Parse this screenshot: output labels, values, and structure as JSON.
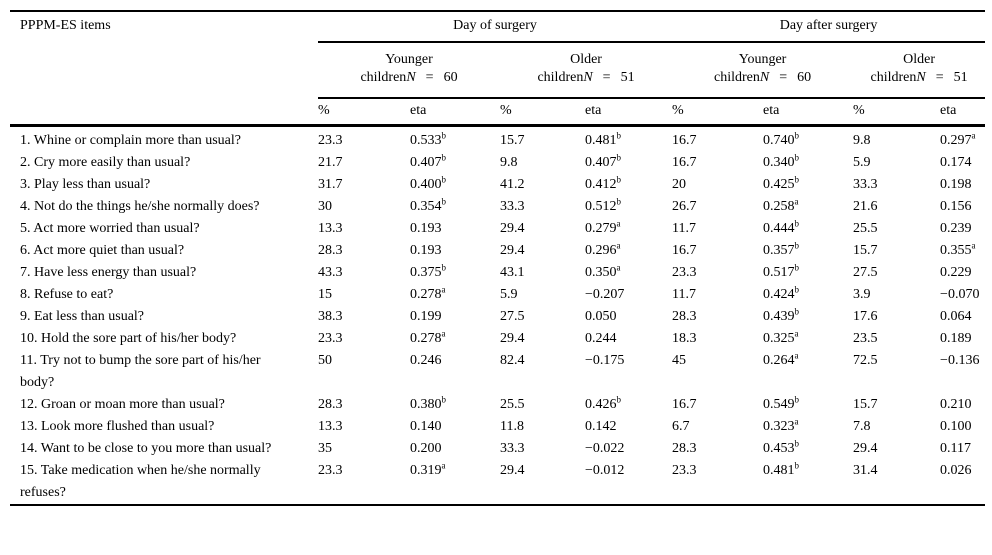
{
  "page": {
    "background": "#ffffff",
    "text_color": "#000000",
    "rule_color": "#000000"
  },
  "table": {
    "items_header": "PPPM-ES items",
    "group_headers": [
      "Day of surgery",
      "Day after surgery"
    ],
    "subheaders": [
      {
        "age_group": "Younger",
        "children_label": "children",
        "n_symbol": "N",
        "equals_sign": "=",
        "n_value": "60"
      },
      {
        "age_group": "Older",
        "children_label": "children",
        "n_symbol": "N",
        "equals_sign": "=",
        "n_value": "51"
      },
      {
        "age_group": "Younger",
        "children_label": "children",
        "n_symbol": "N",
        "equals_sign": "=",
        "n_value": "60"
      },
      {
        "age_group": "Older",
        "children_label": "children",
        "n_symbol": "N",
        "equals_sign": "=",
        "n_value": "51"
      }
    ],
    "measure_headers": [
      "%",
      "eta",
      "%",
      "eta",
      "%",
      "eta",
      "%",
      "eta"
    ],
    "rows": [
      {
        "item": "1. Whine or complain more than usual?",
        "values": [
          {
            "v": "23.3"
          },
          {
            "v": "0.533",
            "sup": "b"
          },
          {
            "v": "15.7"
          },
          {
            "v": "0.481",
            "sup": "b"
          },
          {
            "v": "16.7"
          },
          {
            "v": "0.740",
            "sup": "b"
          },
          {
            "v": "9.8"
          },
          {
            "v": "0.297",
            "sup": "a"
          }
        ]
      },
      {
        "item": "2. Cry more easily than usual?",
        "values": [
          {
            "v": "21.7"
          },
          {
            "v": "0.407",
            "sup": "b"
          },
          {
            "v": "9.8"
          },
          {
            "v": "0.407",
            "sup": "b"
          },
          {
            "v": "16.7"
          },
          {
            "v": "0.340",
            "sup": "b"
          },
          {
            "v": "5.9"
          },
          {
            "v": "0.174"
          }
        ]
      },
      {
        "item": "3. Play less than usual?",
        "values": [
          {
            "v": "31.7"
          },
          {
            "v": "0.400",
            "sup": "b"
          },
          {
            "v": "41.2"
          },
          {
            "v": "0.412",
            "sup": "b"
          },
          {
            "v": "20"
          },
          {
            "v": "0.425",
            "sup": "b"
          },
          {
            "v": "33.3"
          },
          {
            "v": "0.198"
          }
        ]
      },
      {
        "item": "4. Not do the things he/she normally does?",
        "values": [
          {
            "v": "30"
          },
          {
            "v": "0.354",
            "sup": "b"
          },
          {
            "v": "33.3"
          },
          {
            "v": "0.512",
            "sup": "b"
          },
          {
            "v": "26.7"
          },
          {
            "v": "0.258",
            "sup": "a"
          },
          {
            "v": "21.6"
          },
          {
            "v": "0.156"
          }
        ]
      },
      {
        "item": "5. Act more worried than usual?",
        "values": [
          {
            "v": "13.3"
          },
          {
            "v": "0.193"
          },
          {
            "v": "29.4"
          },
          {
            "v": "0.279",
            "sup": "a"
          },
          {
            "v": "11.7"
          },
          {
            "v": "0.444",
            "sup": "b"
          },
          {
            "v": "25.5"
          },
          {
            "v": "0.239"
          }
        ]
      },
      {
        "item": "6. Act more quiet than usual?",
        "values": [
          {
            "v": "28.3"
          },
          {
            "v": "0.193"
          },
          {
            "v": "29.4"
          },
          {
            "v": "0.296",
            "sup": "a"
          },
          {
            "v": "16.7"
          },
          {
            "v": "0.357",
            "sup": "b"
          },
          {
            "v": "15.7"
          },
          {
            "v": "0.355",
            "sup": "a"
          }
        ]
      },
      {
        "item": "7. Have less energy than usual?",
        "values": [
          {
            "v": "43.3"
          },
          {
            "v": "0.375",
            "sup": "b"
          },
          {
            "v": "43.1"
          },
          {
            "v": "0.350",
            "sup": "a"
          },
          {
            "v": "23.3"
          },
          {
            "v": "0.517",
            "sup": "b"
          },
          {
            "v": "27.5"
          },
          {
            "v": "0.229"
          }
        ]
      },
      {
        "item": "8. Refuse to eat?",
        "values": [
          {
            "v": "15"
          },
          {
            "v": "0.278",
            "sup": "a"
          },
          {
            "v": "5.9"
          },
          {
            "v": "−0.207"
          },
          {
            "v": "11.7"
          },
          {
            "v": "0.424",
            "sup": "b"
          },
          {
            "v": "3.9"
          },
          {
            "v": "−0.070"
          }
        ]
      },
      {
        "item": "9. Eat less than usual?",
        "values": [
          {
            "v": "38.3"
          },
          {
            "v": "0.199"
          },
          {
            "v": "27.5"
          },
          {
            "v": "0.050"
          },
          {
            "v": "28.3"
          },
          {
            "v": "0.439",
            "sup": "b"
          },
          {
            "v": "17.6"
          },
          {
            "v": "0.064"
          }
        ]
      },
      {
        "item": "10. Hold the sore part of his/her body?",
        "values": [
          {
            "v": "23.3"
          },
          {
            "v": "0.278",
            "sup": "a"
          },
          {
            "v": "29.4"
          },
          {
            "v": "0.244"
          },
          {
            "v": "18.3"
          },
          {
            "v": "0.325",
            "sup": "a"
          },
          {
            "v": "23.5"
          },
          {
            "v": "0.189"
          }
        ]
      },
      {
        "item": "11. Try not to bump the sore part of his/her body?",
        "values": [
          {
            "v": "50"
          },
          {
            "v": "0.246"
          },
          {
            "v": "82.4"
          },
          {
            "v": "−0.175"
          },
          {
            "v": "45"
          },
          {
            "v": "0.264",
            "sup": "a"
          },
          {
            "v": "72.5"
          },
          {
            "v": "−0.136"
          }
        ]
      },
      {
        "item": "12. Groan or moan more than usual?",
        "values": [
          {
            "v": "28.3"
          },
          {
            "v": "0.380",
            "sup": "b"
          },
          {
            "v": "25.5"
          },
          {
            "v": "0.426",
            "sup": "b"
          },
          {
            "v": "16.7"
          },
          {
            "v": "0.549",
            "sup": "b"
          },
          {
            "v": "15.7"
          },
          {
            "v": "0.210"
          }
        ]
      },
      {
        "item": "13. Look more flushed than usual?",
        "values": [
          {
            "v": "13.3"
          },
          {
            "v": "0.140"
          },
          {
            "v": "11.8"
          },
          {
            "v": "0.142"
          },
          {
            "v": "6.7"
          },
          {
            "v": "0.323",
            "sup": "a"
          },
          {
            "v": "7.8"
          },
          {
            "v": "0.100"
          }
        ]
      },
      {
        "item": "14. Want to be close to you more than usual?",
        "values": [
          {
            "v": "35"
          },
          {
            "v": "0.200"
          },
          {
            "v": "33.3"
          },
          {
            "v": "−0.022"
          },
          {
            "v": "28.3"
          },
          {
            "v": "0.453",
            "sup": "b"
          },
          {
            "v": "29.4"
          },
          {
            "v": "0.117"
          }
        ]
      },
      {
        "item": "15. Take medication when he/she normally refuses?",
        "values": [
          {
            "v": "23.3"
          },
          {
            "v": "0.319",
            "sup": "a"
          },
          {
            "v": "29.4"
          },
          {
            "v": "−0.012"
          },
          {
            "v": "23.3"
          },
          {
            "v": "0.481",
            "sup": "b"
          },
          {
            "v": "31.4"
          },
          {
            "v": "0.026"
          }
        ]
      }
    ]
  }
}
